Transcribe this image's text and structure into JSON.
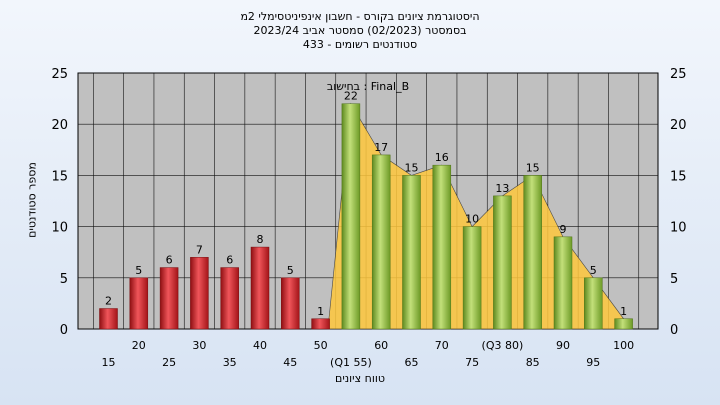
{
  "title_lines": [
    "היסטוגרמת ציונים בקורס - חשבון אינפיניטסימלי 2מ",
    "בסמסטר (02/2023) סמסטר אביב 2023/24",
    "סטודנטים רשומים - 433"
  ],
  "chart_data": {
    "type": "bar",
    "title": "היסטוגרמת ציונים בקורס - חשבון אינפיניטסימלי 2מ",
    "xlabel": "טווח ציונים",
    "ylabel": "מספר סטודנטים",
    "ylim": [
      0,
      25
    ],
    "yticks": [
      0,
      5,
      10,
      15,
      20,
      25
    ],
    "grid": true,
    "legend": "בחישוב : Final_B",
    "categories": [
      "15",
      "20",
      "25",
      "30",
      "35",
      "40",
      "45",
      "50",
      "(Q1 55)",
      "60",
      "65",
      "70",
      "75",
      "(Q3 80)",
      "85",
      "90",
      "95",
      "100"
    ],
    "values": [
      2,
      5,
      6,
      7,
      6,
      8,
      5,
      1,
      22,
      17,
      15,
      16,
      10,
      13,
      15,
      9,
      5,
      1
    ],
    "colors": {
      "fail": "#d9262b",
      "pass": "#8db33f",
      "area": "#ffc83d",
      "plot_bg": "#c0c0c0"
    },
    "pass_threshold": 55
  }
}
